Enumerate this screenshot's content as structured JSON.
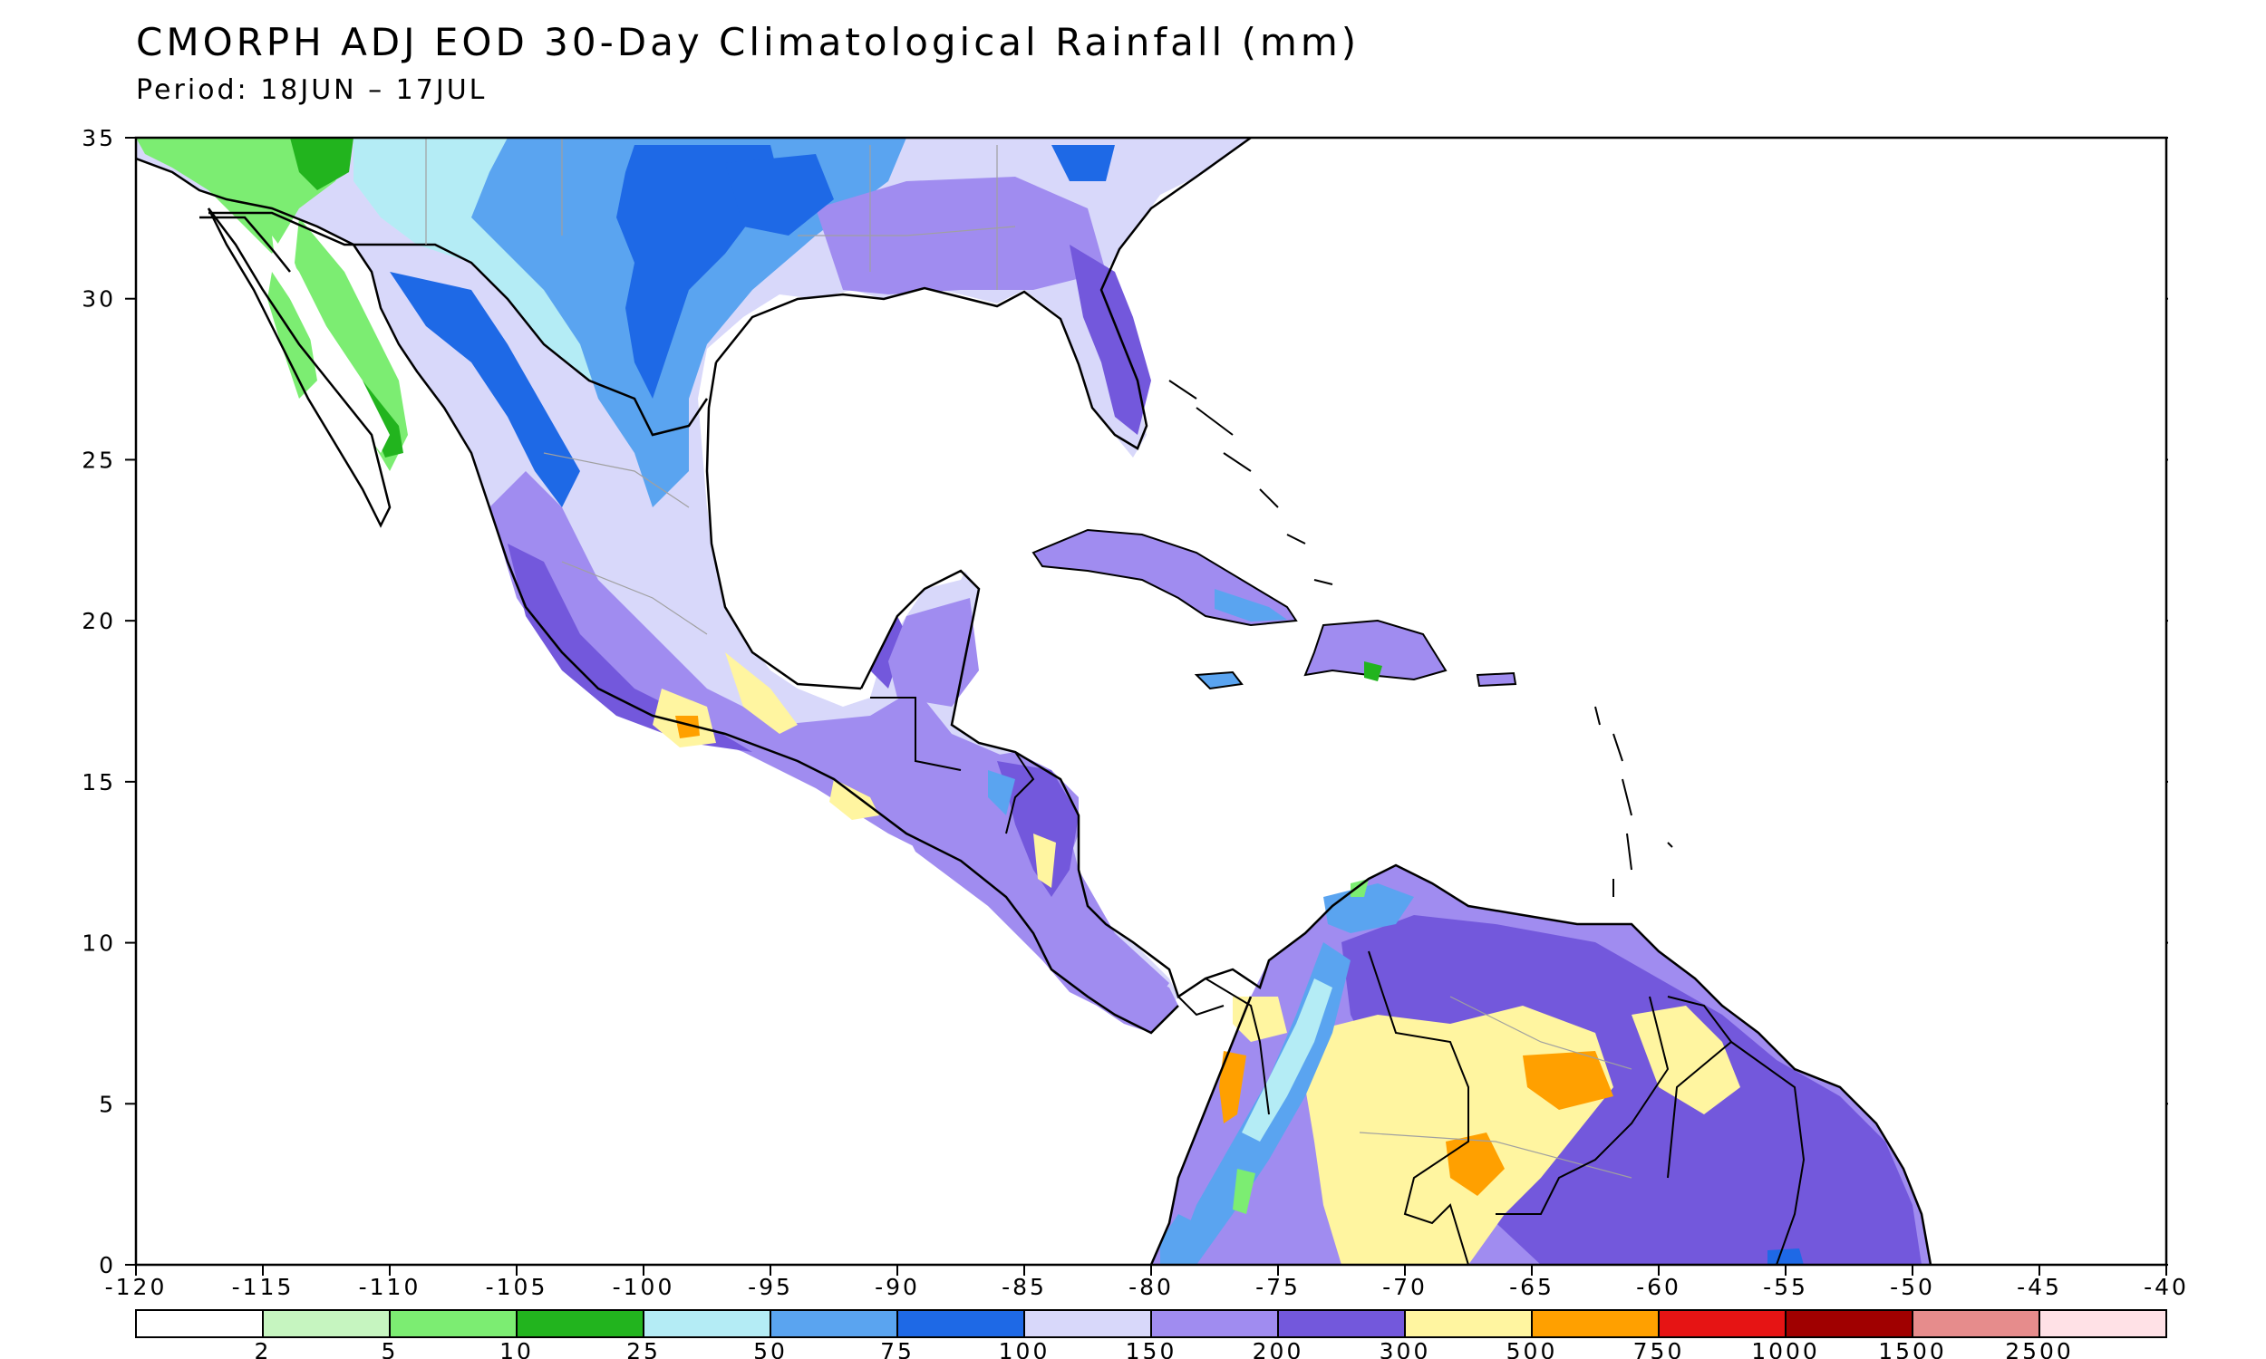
{
  "map": {
    "title": "CMORPH ADJ EOD 30-Day Climatological Rainfall (mm)",
    "subtitle": "Period: 18JUN – 17JUL",
    "lon_ticks": [
      "-120",
      "-115",
      "-110",
      "-105",
      "-100",
      "-95",
      "-90",
      "-85",
      "-80",
      "-75",
      "-70",
      "-65",
      "-60",
      "-55",
      "-50",
      "-45",
      "-40"
    ],
    "lat_ticks": [
      "0",
      "5",
      "10",
      "15",
      "20",
      "25",
      "30",
      "35"
    ],
    "region": {
      "lon_range": [
        -120,
        -40
      ],
      "lat_range": [
        0,
        35
      ]
    },
    "colorbar": {
      "colors": [
        "#ffffff",
        "#c6f5c0",
        "#7ced72",
        "#22b41e",
        "#b4ecf5",
        "#5aa4f0",
        "#1e69e6",
        "#d8d8fa",
        "#a08cf0",
        "#7358dc",
        "#fff5a0",
        "#ffa000",
        "#e61414",
        "#a00000",
        "#e68c8c",
        "#ffe1e6"
      ],
      "labels": [
        "2",
        "5",
        "10",
        "25",
        "50",
        "75",
        "100",
        "150",
        "200",
        "300",
        "500",
        "750",
        "1000",
        "1500",
        "2500"
      ]
    },
    "features": {
      "ocean": "white",
      "land_outline": "#000000",
      "state_lines": "#a0a0a0"
    }
  }
}
